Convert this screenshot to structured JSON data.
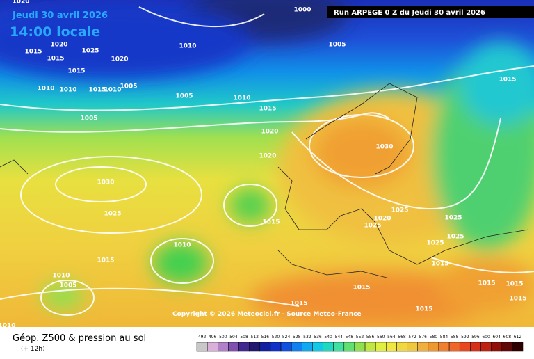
{
  "header": {
    "date": "Jeudi 30 avril 2026",
    "time": "14:00 locale",
    "run": "Run ARPEGE 0 Z du Jeudi 30 avril 2026"
  },
  "copyright": "Copyright © 2026 Meteociel.fr - Source Meteo-France",
  "footer": {
    "title": "Géop. Z500 & pression au sol",
    "lead": "(+ 12h)"
  },
  "scale": {
    "labels": [
      492,
      496,
      500,
      504,
      508,
      512,
      516,
      520,
      524,
      528,
      532,
      536,
      540,
      544,
      548,
      552,
      556,
      560,
      564,
      568,
      572,
      576,
      580,
      584,
      588,
      592,
      596,
      600,
      604,
      608,
      612
    ]
  },
  "isobars": [
    "1000",
    "1020",
    "1015",
    "1020",
    "1025",
    "1020",
    "1010",
    "1005",
    "1015",
    "1015",
    "1010",
    "1010",
    "1015",
    "1010",
    "1005",
    "1005",
    "1010",
    "1015",
    "1005",
    "1020",
    "1020",
    "1030",
    "1030",
    "1025",
    "1025",
    "1020",
    "1025",
    "1015",
    "1025",
    "1025",
    "1025",
    "1010",
    "1015",
    "1015",
    "1010",
    "1005",
    "1015",
    "1015",
    "1015",
    "1015",
    "1015",
    "1015",
    "1010",
    "1015"
  ]
}
